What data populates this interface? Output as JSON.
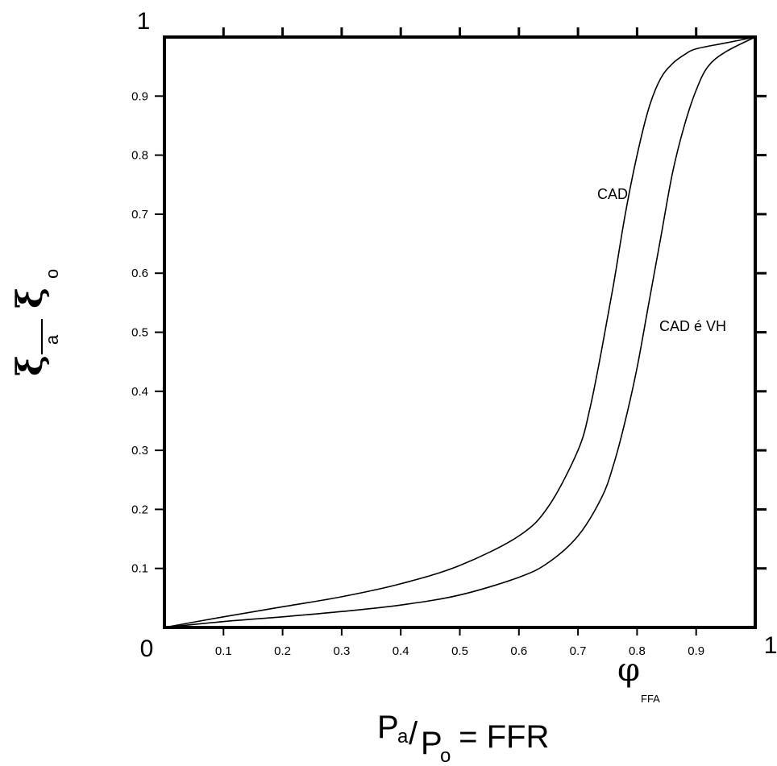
{
  "chart_data": {
    "type": "line",
    "xlim": [
      0,
      1
    ],
    "ylim": [
      0,
      1
    ],
    "grid": false,
    "x_ticks": [
      "0.1",
      "0.2",
      "0.3",
      "0.4",
      "0.5",
      "0.6",
      "0.7",
      "0.8",
      "0.9"
    ],
    "y_ticks": [
      "0.1",
      "0.2",
      "0.3",
      "0.4",
      "0.5",
      "0.6",
      "0.7",
      "0.8",
      "0.9"
    ],
    "corner_labels": {
      "origin": "0",
      "x_end": "1",
      "y_end": "1"
    },
    "ylabel": {
      "top": "ξ",
      "top_sub": "a",
      "bottom": "ξ",
      "bottom_sub": "o"
    },
    "xlabel": {
      "p1": "P",
      "p1_sub": "a",
      "slash": "/",
      "p2": "P",
      "p2_sub": "o",
      "rest": " = FFR"
    },
    "annotation": {
      "symbol": "φ",
      "sub": "FFA"
    },
    "series": [
      {
        "name": "CAD",
        "x": [
          0,
          0.1,
          0.2,
          0.3,
          0.4,
          0.5,
          0.6,
          0.65,
          0.7,
          0.72,
          0.74,
          0.76,
          0.78,
          0.8,
          0.82,
          0.84,
          0.86,
          0.88,
          0.9,
          0.95,
          1.0
        ],
        "y": [
          0,
          0.018,
          0.035,
          0.052,
          0.074,
          0.105,
          0.155,
          0.205,
          0.3,
          0.37,
          0.47,
          0.58,
          0.7,
          0.8,
          0.88,
          0.93,
          0.955,
          0.97,
          0.98,
          0.99,
          1.0
        ]
      },
      {
        "name": "CAD é VH",
        "x": [
          0,
          0.1,
          0.2,
          0.3,
          0.4,
          0.5,
          0.6,
          0.65,
          0.7,
          0.74,
          0.76,
          0.78,
          0.8,
          0.82,
          0.84,
          0.86,
          0.88,
          0.9,
          0.92,
          0.95,
          1.0
        ],
        "y": [
          0,
          0.01,
          0.018,
          0.027,
          0.038,
          0.055,
          0.085,
          0.11,
          0.155,
          0.22,
          0.275,
          0.35,
          0.44,
          0.55,
          0.66,
          0.77,
          0.85,
          0.91,
          0.95,
          0.975,
          1.0
        ]
      }
    ]
  }
}
